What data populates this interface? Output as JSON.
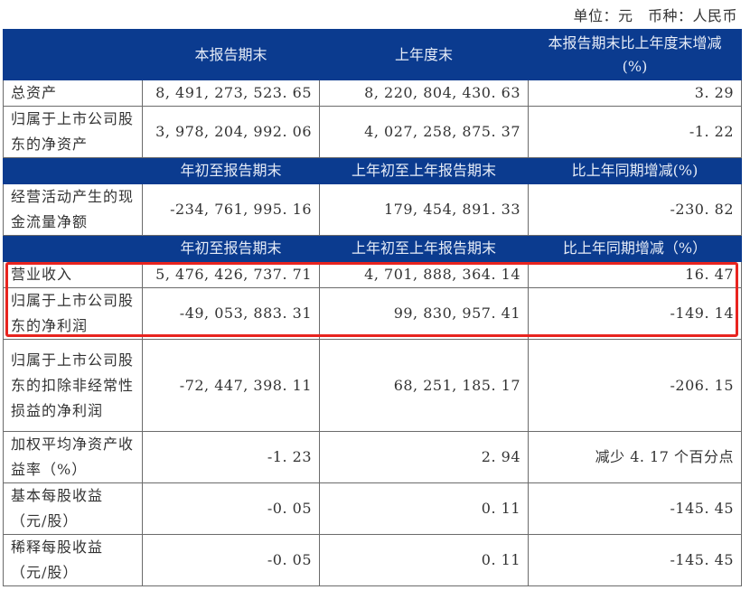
{
  "unit_line": "单位：元　币种：人民币",
  "highlight_color": "#e8241f",
  "header_color": "#0b3b8f",
  "section1": {
    "headers": [
      "",
      "本报告期末",
      "上年度末",
      "本报告期末比上年度末增减(%)"
    ],
    "rows": [
      {
        "label": "总资产",
        "v1": "8, 491, 273, 523. 65",
        "v2": "8, 220, 804, 430. 63",
        "v3": "3. 29"
      },
      {
        "label": "归属于上市公司股东的净资产",
        "v1": "3, 978, 204, 992. 06",
        "v2": "4, 027, 258, 875. 37",
        "v3": "-1. 22"
      }
    ]
  },
  "section2": {
    "headers": [
      "",
      "年初至报告期末",
      "上年初至上年报告期末",
      "比上年同期增减(%)"
    ],
    "rows": [
      {
        "label": "经营活动产生的现金流量净额",
        "v1": "-234, 761, 995. 16",
        "v2": "179, 454, 891. 33",
        "v3": "-230. 82"
      }
    ]
  },
  "section3": {
    "headers": [
      "",
      "年初至报告期末",
      "上年初至上年报告期末",
      "比上年同期增减（%）"
    ],
    "rows": [
      {
        "label": "营业收入",
        "v1": "5, 476, 426, 737. 71",
        "v2": "4, 701, 888, 364. 14",
        "v3": "16. 47"
      },
      {
        "label": "归属于上市公司股东的净利润",
        "v1": "-49, 053, 883. 31",
        "v2": "99, 830, 957. 41",
        "v3": "-149. 14"
      },
      {
        "label": "归属于上市公司股东的扣除非经常性损益的净利润",
        "v1": "-72, 447, 398. 11",
        "v2": "68, 251, 185. 17",
        "v3": "-206. 15"
      },
      {
        "label": "加权平均净资产收益率（%）",
        "v1": "-1. 23",
        "v2": "2. 94",
        "v3": "减少 4. 17 个百分点"
      },
      {
        "label": "基本每股收益（元/股）",
        "v1": "-0. 05",
        "v2": "0. 11",
        "v3": "-145. 45"
      },
      {
        "label": "稀释每股收益（元/股）",
        "v1": "-0. 05",
        "v2": "0. 11",
        "v3": "-145. 45"
      }
    ]
  }
}
